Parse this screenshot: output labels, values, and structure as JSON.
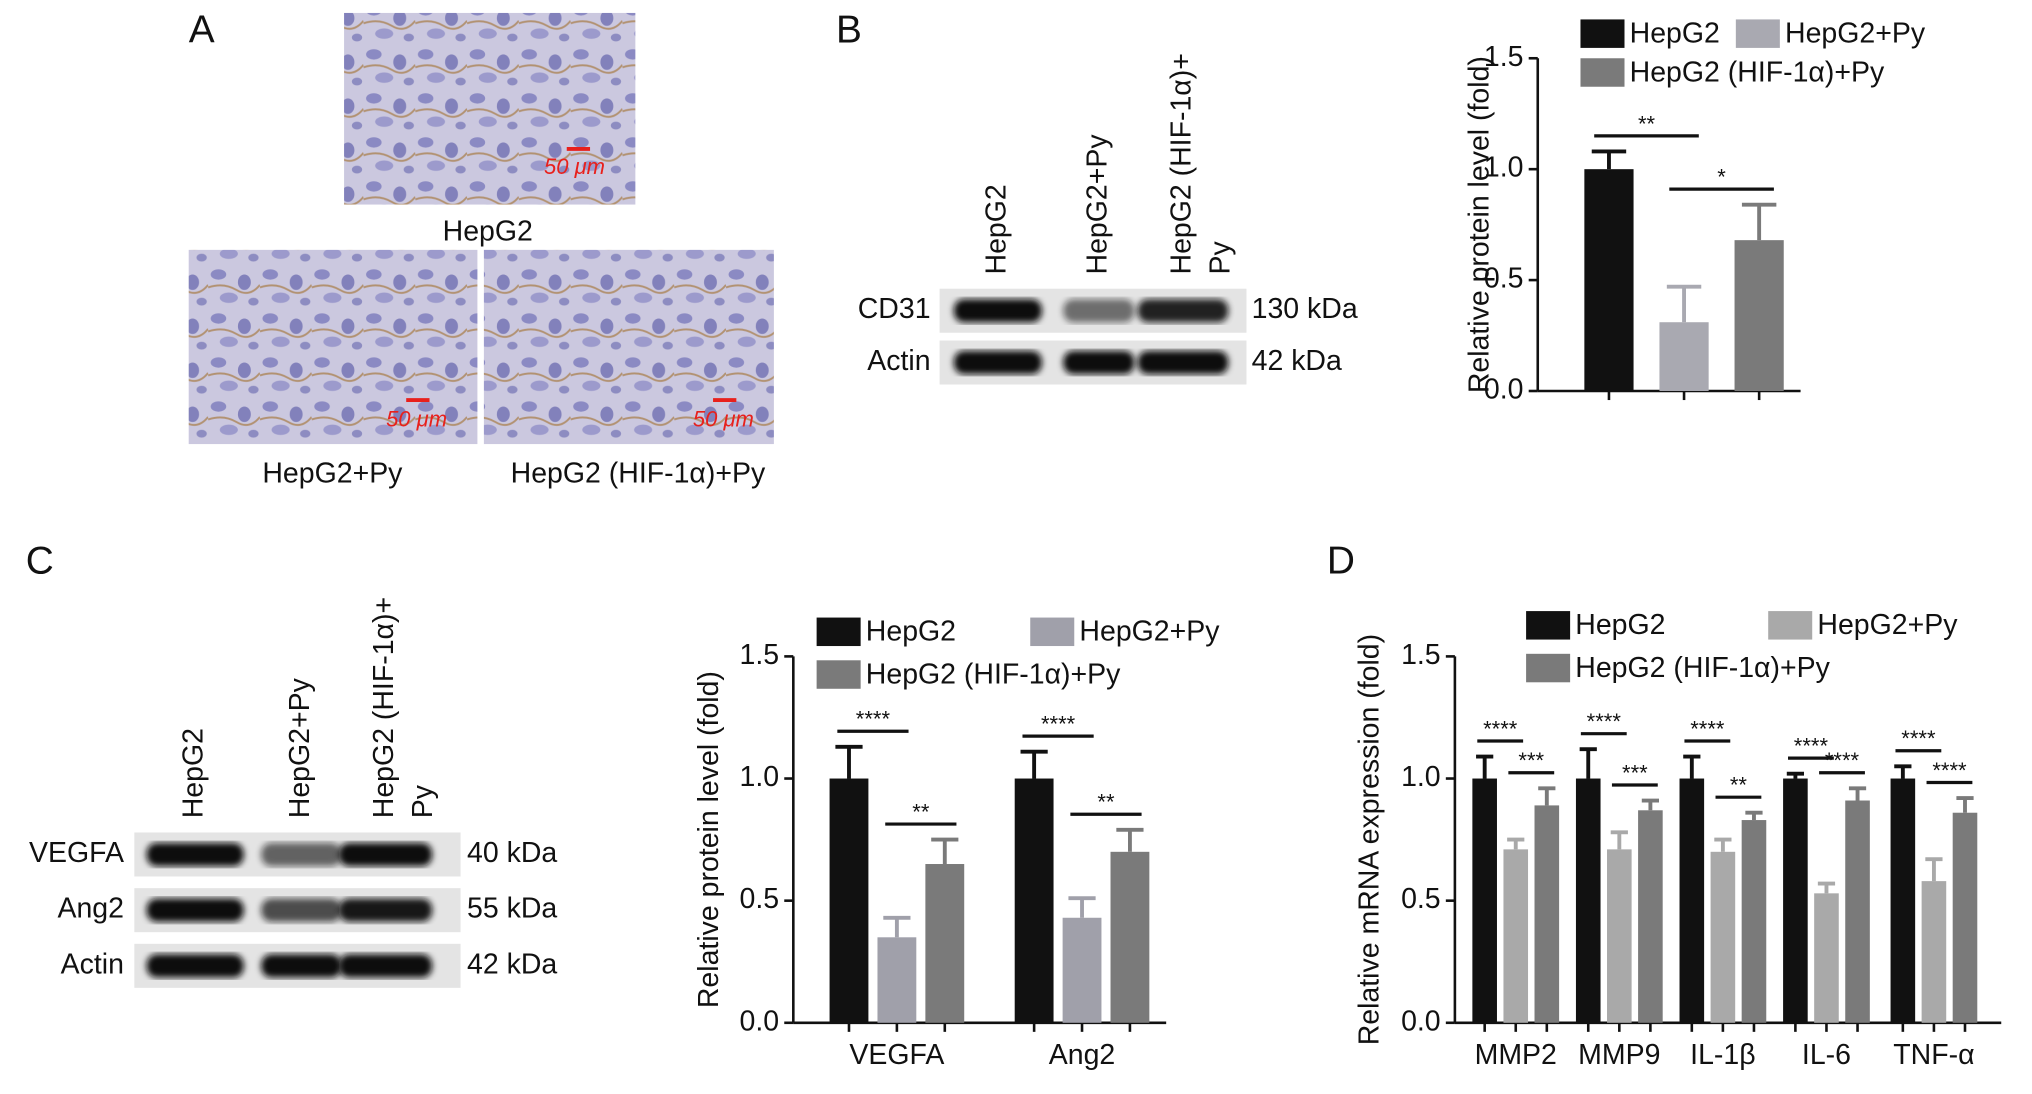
{
  "panel_labels": [
    "A",
    "B",
    "C",
    "D"
  ],
  "ihc": {
    "captions": [
      "HepG2",
      "HepG2+Py",
      "HepG2 (HIF-1α)+Py"
    ],
    "scale_bar": "50 μm"
  },
  "blot_b": {
    "lanes": [
      [
        "HepG2"
      ],
      [
        "HepG2+Py"
      ],
      [
        "HepG2 (HIF-1α)+",
        "Py"
      ]
    ],
    "bands": [
      {
        "protein": "CD31",
        "size": "130 kDa"
      },
      {
        "protein": "Actin",
        "size": "42 kDa"
      }
    ]
  },
  "blot_c": {
    "lanes": [
      [
        "HepG2"
      ],
      [
        "HepG2+Py"
      ],
      [
        "HepG2 (HIF-1α)+",
        "Py"
      ]
    ],
    "bands": [
      {
        "protein": "VEGFA",
        "size": "40 kDa"
      },
      {
        "protein": "Ang2",
        "size": "55 kDa"
      },
      {
        "protein": "Actin",
        "size": "42 kDa"
      }
    ]
  },
  "chart_data": [
    {
      "type": "bar",
      "ylabel": "Relative protein level (fold)",
      "categories": [
        null
      ],
      "series": [
        {
          "name": "HepG2",
          "color": "#111111",
          "values": [
            1.0
          ],
          "errors": [
            0.08
          ]
        },
        {
          "name": "HepG2+Py",
          "color": "#a9a9b1",
          "values": [
            0.31
          ],
          "errors": [
            0.16
          ]
        },
        {
          "name": "HepG2 (HIF-1α)+Py",
          "color": "#7a7a7a",
          "values": [
            0.68
          ],
          "errors": [
            0.16
          ]
        }
      ],
      "significance": [
        [
          "**",
          "*"
        ]
      ],
      "ylim": [
        0,
        1.5
      ],
      "yticks": [
        {
          "value": 0,
          "label": "0.0"
        },
        0.5,
        {
          "value": 1,
          "label": "1.0"
        },
        1.5
      ]
    },
    {
      "type": "bar",
      "ylabel": "Relative protein level (fold)",
      "categories": [
        "VEGFA",
        "Ang2"
      ],
      "series": [
        {
          "name": "HepG2",
          "color": "#111111",
          "values": [
            1.0,
            1.0
          ],
          "errors": [
            0.13,
            0.11
          ]
        },
        {
          "name": "HepG2+Py",
          "color": "#a0a0aa",
          "values": [
            0.35,
            0.43
          ],
          "errors": [
            0.08,
            0.08
          ]
        },
        {
          "name": "HepG2 (HIF-1α)+Py",
          "color": "#7a7a7a",
          "values": [
            0.65,
            0.7
          ],
          "errors": [
            0.1,
            0.09
          ]
        }
      ],
      "significance": [
        [
          "****",
          "**"
        ],
        [
          "****",
          "**"
        ]
      ],
      "ylim": [
        0,
        1.5
      ],
      "yticks": [
        {
          "value": 0,
          "label": "0.0"
        },
        0.5,
        {
          "value": 1,
          "label": "1.0"
        },
        1.5
      ]
    },
    {
      "type": "bar",
      "ylabel": "Relative mRNA expression (fold)",
      "categories": [
        "MMP2",
        "MMP9",
        "IL-1β",
        "IL-6",
        "TNF-α"
      ],
      "series": [
        {
          "name": "HepG2",
          "color": "#111111",
          "values": [
            1.0,
            1.0,
            1.0,
            1.0,
            1.0
          ],
          "errors": [
            0.09,
            0.12,
            0.09,
            0.02,
            0.05
          ]
        },
        {
          "name": "HepG2+Py",
          "color": "#a9a9a9",
          "values": [
            0.71,
            0.71,
            0.7,
            0.53,
            0.58
          ],
          "errors": [
            0.04,
            0.07,
            0.05,
            0.04,
            0.09
          ]
        },
        {
          "name": "HepG2 (HIF-1α)+Py",
          "color": "#7a7a7a",
          "values": [
            0.89,
            0.87,
            0.83,
            0.91,
            0.86
          ],
          "errors": [
            0.07,
            0.04,
            0.03,
            0.05,
            0.06
          ]
        }
      ],
      "significance": [
        [
          "****",
          "***"
        ],
        [
          "****",
          "***"
        ],
        [
          "****",
          "**"
        ],
        [
          "****",
          "****"
        ],
        [
          "****",
          "****"
        ]
      ],
      "ylim": [
        0,
        1.5
      ],
      "yticks": [
        {
          "value": 0,
          "label": "0.0"
        },
        0.5,
        {
          "value": 1,
          "label": "1.0"
        },
        1.5
      ]
    }
  ]
}
